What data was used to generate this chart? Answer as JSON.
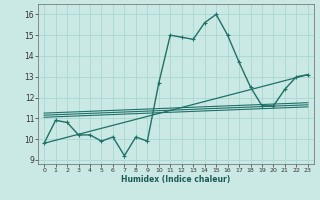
{
  "xlabel": "Humidex (Indice chaleur)",
  "background_color": "#cbe9e4",
  "grid_color": "#a8d8d2",
  "line_color": "#1e7068",
  "xlim": [
    -0.5,
    23.5
  ],
  "ylim": [
    8.8,
    16.5
  ],
  "yticks": [
    9,
    10,
    11,
    12,
    13,
    14,
    15,
    16
  ],
  "xticks": [
    0,
    1,
    2,
    3,
    4,
    5,
    6,
    7,
    8,
    9,
    10,
    11,
    12,
    13,
    14,
    15,
    16,
    17,
    18,
    19,
    20,
    21,
    22,
    23
  ],
  "main_series": {
    "x": [
      0,
      1,
      2,
      3,
      4,
      5,
      6,
      7,
      8,
      9,
      10,
      11,
      12,
      13,
      14,
      15,
      16,
      17,
      18,
      19,
      20,
      21,
      22,
      23
    ],
    "y": [
      9.8,
      10.9,
      10.8,
      10.2,
      10.2,
      9.9,
      10.1,
      9.2,
      10.1,
      9.9,
      12.7,
      15.0,
      14.9,
      14.8,
      15.6,
      16.0,
      15.0,
      13.7,
      12.5,
      11.6,
      11.6,
      12.4,
      13.0,
      13.1
    ]
  },
  "trend_line": {
    "x": [
      0,
      23
    ],
    "y": [
      9.8,
      13.1
    ]
  },
  "flat_lines": [
    {
      "x": [
        0,
        23
      ],
      "y": [
        11.05,
        11.55
      ]
    },
    {
      "x": [
        0,
        23
      ],
      "y": [
        11.15,
        11.65
      ]
    },
    {
      "x": [
        0,
        23
      ],
      "y": [
        11.25,
        11.75
      ]
    }
  ]
}
